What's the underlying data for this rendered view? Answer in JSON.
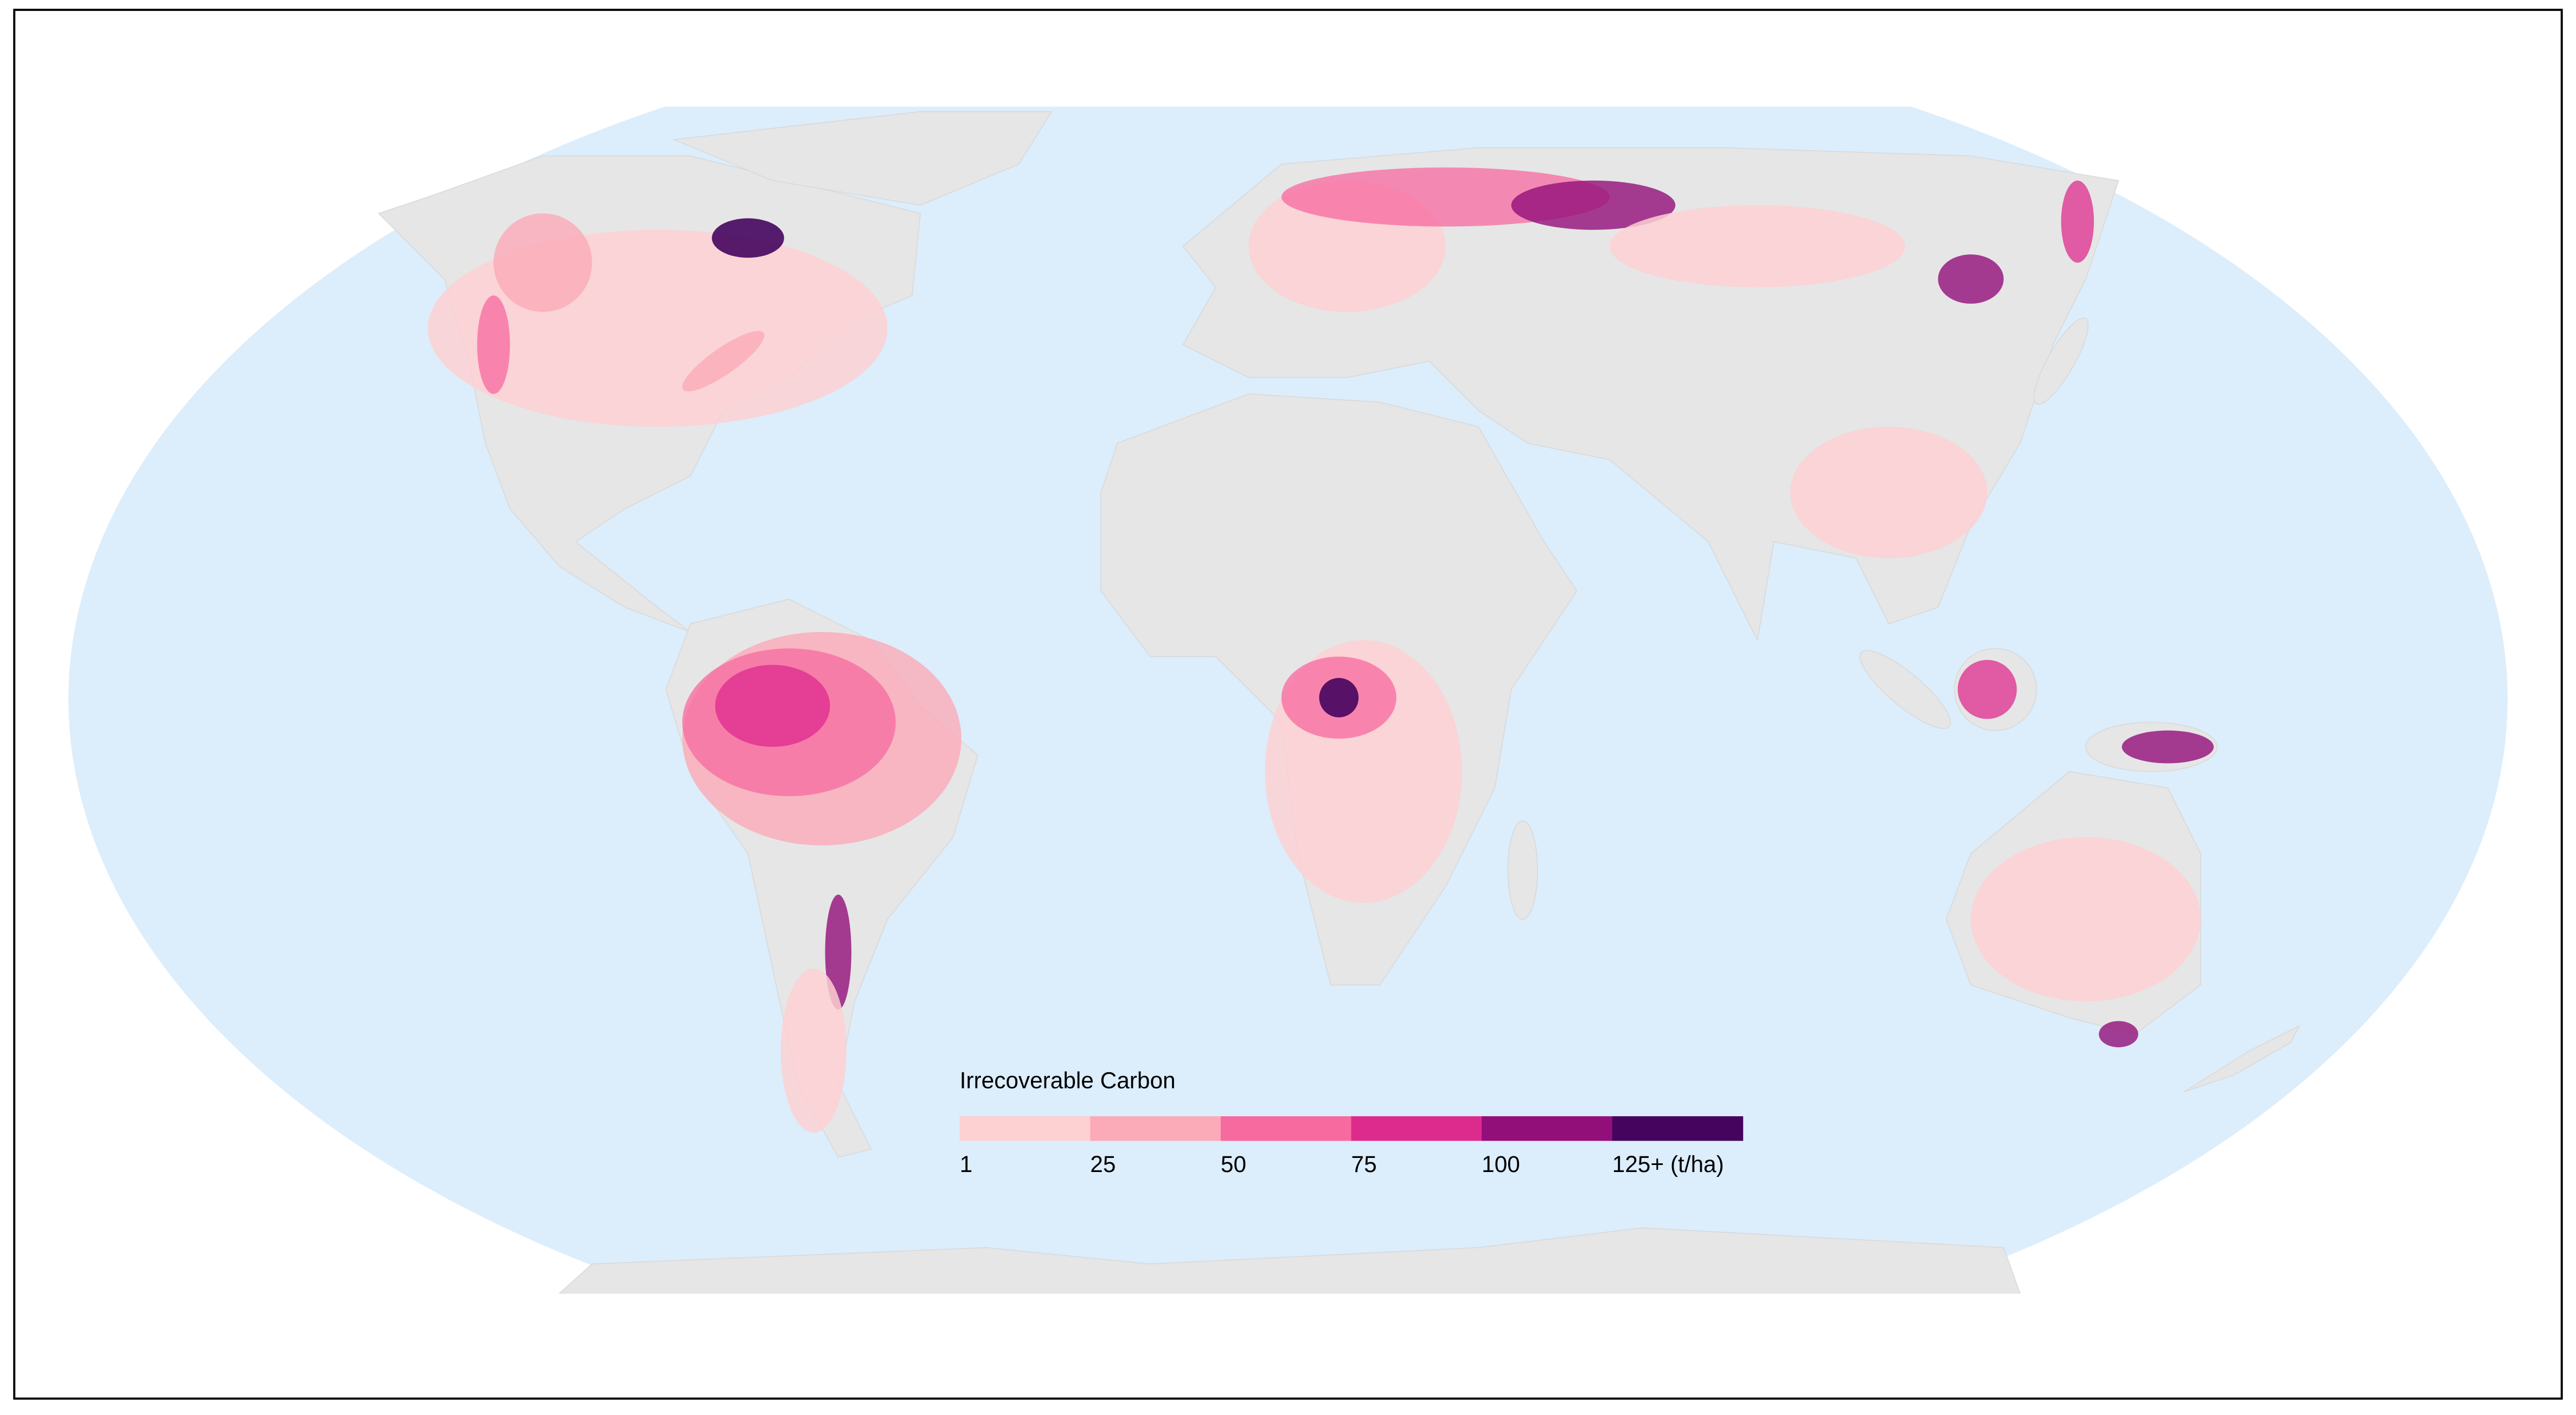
{
  "legend": {
    "title": "Irrecoverable Carbon",
    "labels": [
      "1",
      "25",
      "50",
      "75",
      "100",
      "125+ (t/ha)"
    ],
    "colors": [
      "#fdd0d2",
      "#fbaab8",
      "#f76aa0",
      "#dd2b8d",
      "#920f7a",
      "#45045e"
    ]
  }
}
